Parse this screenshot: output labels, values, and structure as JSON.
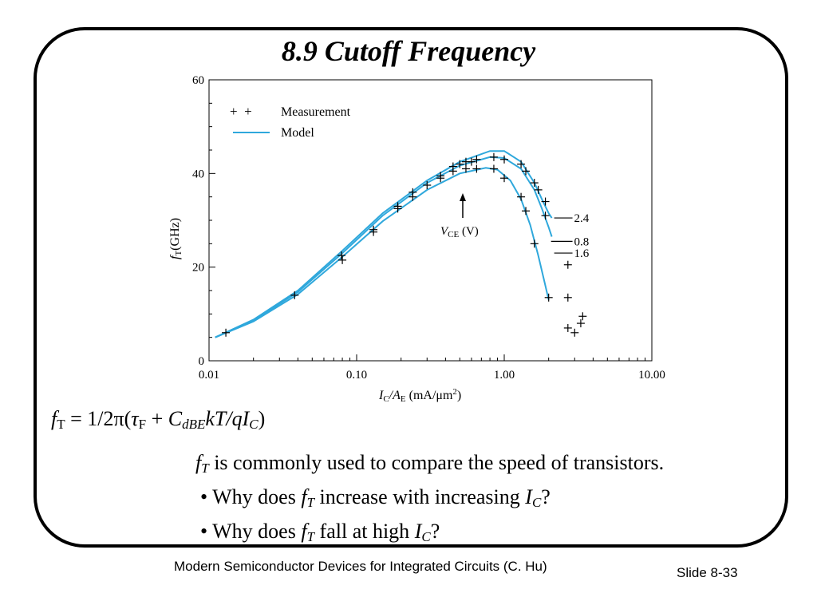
{
  "slide": {
    "title": "8.9  Cutoff Frequency",
    "formula": {
      "lhs_main": "f",
      "lhs_sub": "T",
      "eq": " = 1/2π(",
      "tau": "τ",
      "tau_sub": "F",
      "plus": " + ",
      "c": "C",
      "c_sub": "dBE",
      "kt": "kT/qI",
      "i_sub": "C",
      "close": ")"
    },
    "lines": {
      "line1_f": "f",
      "line1_sub": "T",
      "line1_text": " is commonly used to compare the speed of transistors.",
      "bullet": "•",
      "b1_pre": "Why does ",
      "b1_f": "f",
      "b1_fsub": "T",
      "b1_mid": " increase with increasing ",
      "b1_i": "I",
      "b1_isub": "C",
      "b1_end": "?",
      "b2_pre": "Why does ",
      "b2_f": "f",
      "b2_fsub": "T",
      "b2_mid": " fall at high ",
      "b2_i": "I",
      "b2_isub": "C",
      "b2_end": "?"
    },
    "footer": "Modern Semiconductor Devices for Integrated Circuits (C. Hu)",
    "slide_number": "Slide 8-33",
    "colors": {
      "model_line": "#2fa8dc",
      "measurement": "#000000",
      "frame": "#000000"
    }
  },
  "chart_data": {
    "type": "scatter",
    "xscale": "log",
    "xlim": [
      0.01,
      10
    ],
    "ylim": [
      0,
      60
    ],
    "x_ticks": [
      0.01,
      0.1,
      1,
      10
    ],
    "x_tick_labels": [
      "0.01",
      "0.10",
      "1.00",
      "10.00"
    ],
    "y_ticks": [
      0,
      20,
      40,
      60
    ],
    "y_tick_labels": [
      "0",
      "20",
      "40",
      "60"
    ],
    "xlabel": {
      "main": "I",
      "sub": "C",
      "mid": "/A",
      "sub2": "E",
      "unit": " (mA/μm",
      "sup": "2",
      "close": ")"
    },
    "ylabel": {
      "main": "f",
      "sub": "T",
      "unit": "(GHz)"
    },
    "legend": {
      "position": "top-left",
      "measurement_label": "Measurement",
      "model_label": "Model",
      "marker": "+  +"
    },
    "annotation": {
      "label_main": "V",
      "label_sub": "CE",
      "label_unit": " (V)",
      "arrow": "up"
    },
    "model_series": [
      {
        "name": "2.4",
        "x": [
          0.011,
          0.02,
          0.04,
          0.08,
          0.15,
          0.3,
          0.5,
          0.8,
          1.0,
          1.3,
          1.6,
          1.8,
          2.0,
          2.1
        ],
        "y": [
          5,
          8.8,
          15,
          23.5,
          31.5,
          38.5,
          42.5,
          44.8,
          44.8,
          42.5,
          38,
          34.5,
          31.5,
          30.5
        ]
      },
      {
        "name": "1.6",
        "x": [
          0.011,
          0.02,
          0.04,
          0.08,
          0.15,
          0.3,
          0.5,
          0.8,
          1.0,
          1.3,
          1.6,
          1.8,
          2.0,
          2.1
        ],
        "y": [
          5,
          8.6,
          14.7,
          23,
          31,
          38,
          41.7,
          43.5,
          43.3,
          41,
          36.5,
          32.5,
          28.5,
          26.5
        ]
      },
      {
        "name": "0.8",
        "x": [
          0.011,
          0.02,
          0.04,
          0.08,
          0.15,
          0.3,
          0.5,
          0.75,
          0.9,
          1.1,
          1.3,
          1.5,
          1.7,
          1.9,
          2.0
        ],
        "y": [
          5,
          8.4,
          14.2,
          22.2,
          29.8,
          36.5,
          40,
          41.2,
          40.8,
          38.5,
          34.5,
          29,
          22.5,
          16,
          13
        ]
      }
    ],
    "measurement": {
      "x": [
        0.013,
        0.038,
        0.079,
        0.08,
        0.13,
        0.13,
        0.19,
        0.19,
        0.24,
        0.24,
        0.3,
        0.37,
        0.37,
        0.45,
        0.45,
        0.5,
        0.55,
        0.55,
        0.6,
        0.65,
        0.65,
        0.85,
        0.85,
        1.0,
        1.0,
        1.3,
        1.3,
        1.4,
        1.4,
        1.6,
        1.6,
        1.7,
        1.9,
        1.9,
        2.0,
        2.7,
        2.7,
        2.7,
        3.0,
        3.3,
        3.4
      ],
      "y": [
        6,
        14,
        22.5,
        21.5,
        28,
        27.5,
        33,
        32.5,
        36,
        35,
        37.5,
        39.5,
        39,
        41.5,
        40.5,
        42,
        42.5,
        41,
        42.5,
        43,
        41,
        43.5,
        41,
        43,
        39,
        42,
        35,
        40.5,
        32,
        38,
        25,
        36.5,
        34,
        31,
        13.5,
        20.5,
        13.5,
        7,
        6,
        8,
        9.5
      ]
    },
    "series_labels": [
      "2.4",
      "1.6",
      "0.8"
    ]
  }
}
